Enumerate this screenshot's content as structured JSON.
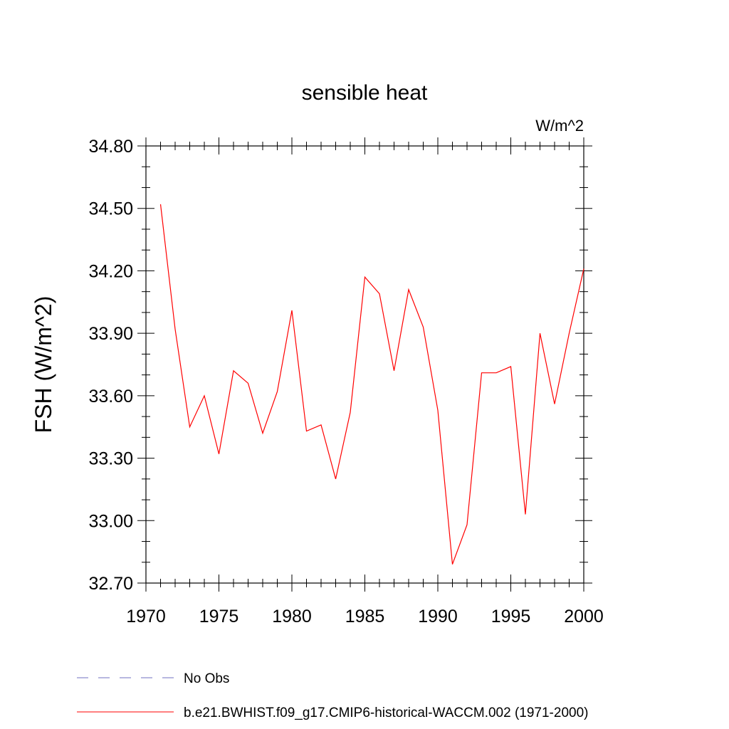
{
  "chart_data": {
    "type": "line",
    "title": "sensible heat",
    "units_label": "W/m^2",
    "ylabel": "FSH  (W/m^2)",
    "xlabel": "",
    "xlim": [
      1970,
      2000
    ],
    "ylim": [
      32.7,
      34.8
    ],
    "x_ticks": [
      1970,
      1975,
      1980,
      1985,
      1990,
      1995,
      2000
    ],
    "x_tick_labels": [
      "1970",
      "1975",
      "1980",
      "1985",
      "1990",
      "1995",
      "2000"
    ],
    "y_ticks": [
      32.7,
      33.0,
      33.3,
      33.6,
      33.9,
      34.2,
      34.5,
      34.8
    ],
    "y_tick_labels": [
      "32.70",
      "33.00",
      "33.30",
      "33.60",
      "33.90",
      "34.20",
      "34.50",
      "34.80"
    ],
    "grid": false,
    "series": [
      {
        "name": "b.e21.BWHIST.f09_g17.CMIP6-historical-WACCM.002 (1971-2000)",
        "color": "#ff0000",
        "x": [
          1971,
          1972,
          1973,
          1974,
          1975,
          1976,
          1977,
          1978,
          1979,
          1980,
          1981,
          1982,
          1983,
          1984,
          1985,
          1986,
          1987,
          1988,
          1989,
          1990,
          1991,
          1992,
          1993,
          1994,
          1995,
          1996,
          1997,
          1998,
          1999,
          2000
        ],
        "values": [
          34.52,
          33.92,
          33.45,
          33.6,
          33.32,
          33.72,
          33.66,
          33.42,
          33.62,
          34.01,
          33.43,
          33.46,
          33.2,
          33.52,
          34.17,
          34.09,
          33.72,
          34.11,
          33.93,
          33.53,
          32.79,
          32.98,
          33.71,
          33.71,
          33.74,
          33.03,
          33.9,
          33.56,
          33.9,
          34.21
        ]
      }
    ],
    "legend": [
      {
        "label": "No Obs",
        "style": "dashed",
        "color": "#7070c0"
      },
      {
        "label": "b.e21.BWHIST.f09_g17.CMIP6-historical-WACCM.002 (1971-2000)",
        "style": "solid",
        "color": "#ff0000"
      }
    ]
  }
}
